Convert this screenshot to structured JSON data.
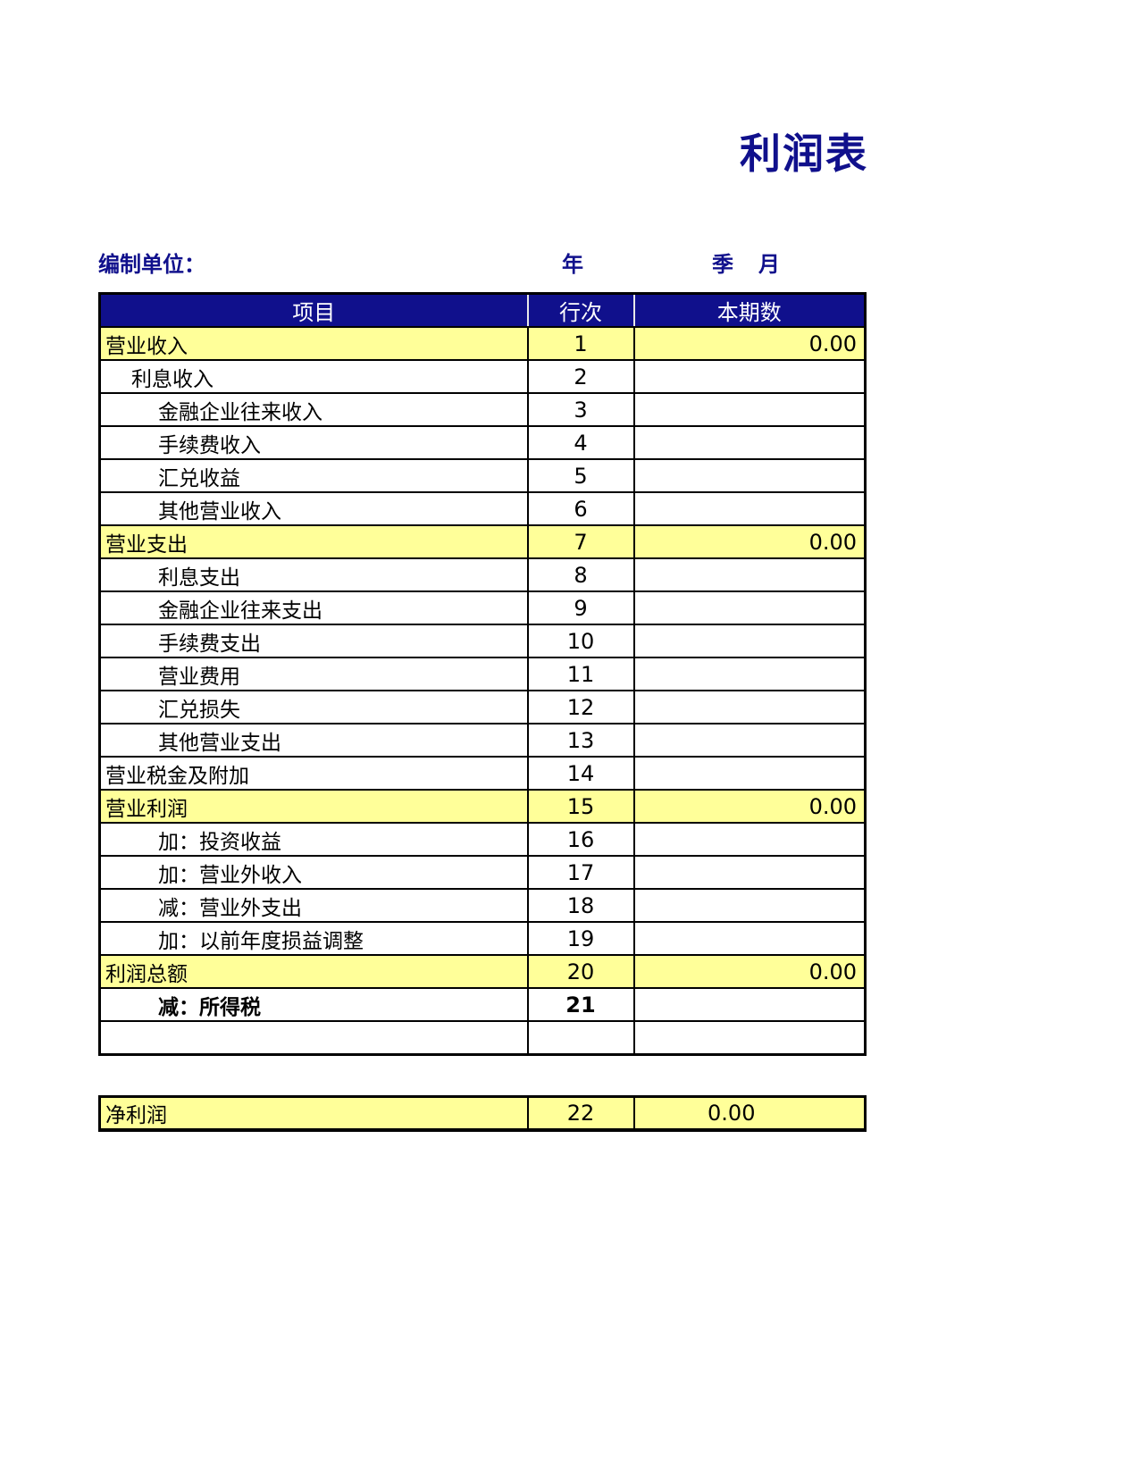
{
  "page_title": "利润表",
  "meta": {
    "prepared_by_label": "编制单位：",
    "year_label": "年",
    "quarter_label": "季",
    "month_label": "月"
  },
  "table": {
    "headers": {
      "item": "项目",
      "line_no": "行次",
      "current_period": "本期数"
    },
    "rows": [
      {
        "item": "营业收入",
        "line_no": "1",
        "amount": "0.00",
        "highlight": true,
        "indent": 0,
        "bold": false
      },
      {
        "item": "利息收入",
        "line_no": "2",
        "amount": "",
        "highlight": false,
        "indent": 1,
        "bold": false
      },
      {
        "item": "金融企业往来收入",
        "line_no": "3",
        "amount": "",
        "highlight": false,
        "indent": 2,
        "bold": false
      },
      {
        "item": "手续费收入",
        "line_no": "4",
        "amount": "",
        "highlight": false,
        "indent": 2,
        "bold": false
      },
      {
        "item": "汇兑收益",
        "line_no": "5",
        "amount": "",
        "highlight": false,
        "indent": 2,
        "bold": false
      },
      {
        "item": "其他营业收入",
        "line_no": "6",
        "amount": "",
        "highlight": false,
        "indent": 2,
        "bold": false
      },
      {
        "item": "营业支出",
        "line_no": "7",
        "amount": "0.00",
        "highlight": true,
        "indent": 0,
        "bold": false
      },
      {
        "item": "利息支出",
        "line_no": "8",
        "amount": "",
        "highlight": false,
        "indent": 2,
        "bold": false
      },
      {
        "item": "金融企业往来支出",
        "line_no": "9",
        "amount": "",
        "highlight": false,
        "indent": 2,
        "bold": false
      },
      {
        "item": "手续费支出",
        "line_no": "10",
        "amount": "",
        "highlight": false,
        "indent": 2,
        "bold": false
      },
      {
        "item": "营业费用",
        "line_no": "11",
        "amount": "",
        "highlight": false,
        "indent": 2,
        "bold": false
      },
      {
        "item": "汇兑损失",
        "line_no": "12",
        "amount": "",
        "highlight": false,
        "indent": 2,
        "bold": false
      },
      {
        "item": "其他营业支出",
        "line_no": "13",
        "amount": "",
        "highlight": false,
        "indent": 2,
        "bold": false
      },
      {
        "item": "营业税金及附加",
        "line_no": "14",
        "amount": "",
        "highlight": false,
        "indent": 0,
        "bold": false
      },
      {
        "item": "营业利润",
        "line_no": "15",
        "amount": "0.00",
        "highlight": true,
        "indent": 0,
        "bold": false
      },
      {
        "item": "加：投资收益",
        "line_no": "16",
        "amount": "",
        "highlight": false,
        "indent": 2,
        "bold": false
      },
      {
        "item": "加：营业外收入",
        "line_no": "17",
        "amount": "",
        "highlight": false,
        "indent": 2,
        "bold": false
      },
      {
        "item": "减：营业外支出",
        "line_no": "18",
        "amount": "",
        "highlight": false,
        "indent": 2,
        "bold": false
      },
      {
        "item": "加：以前年度损益调整",
        "line_no": "19",
        "amount": "",
        "highlight": false,
        "indent": 2,
        "bold": false
      },
      {
        "item": "利润总额",
        "line_no": "20",
        "amount": "0.00",
        "highlight": true,
        "indent": 0,
        "bold": false
      },
      {
        "item": "减：所得税",
        "line_no": "21",
        "amount": "",
        "highlight": false,
        "indent": 2,
        "bold": true
      },
      {
        "item": "",
        "line_no": "",
        "amount": "",
        "highlight": false,
        "indent": 0,
        "bold": false
      }
    ],
    "footer_row": {
      "item": "净利润",
      "line_no": "22",
      "amount": "0.00",
      "highlight": true
    }
  },
  "colors": {
    "navy": "#10108C",
    "highlight_yellow": "#FFFF99",
    "border_black": "#000000"
  }
}
